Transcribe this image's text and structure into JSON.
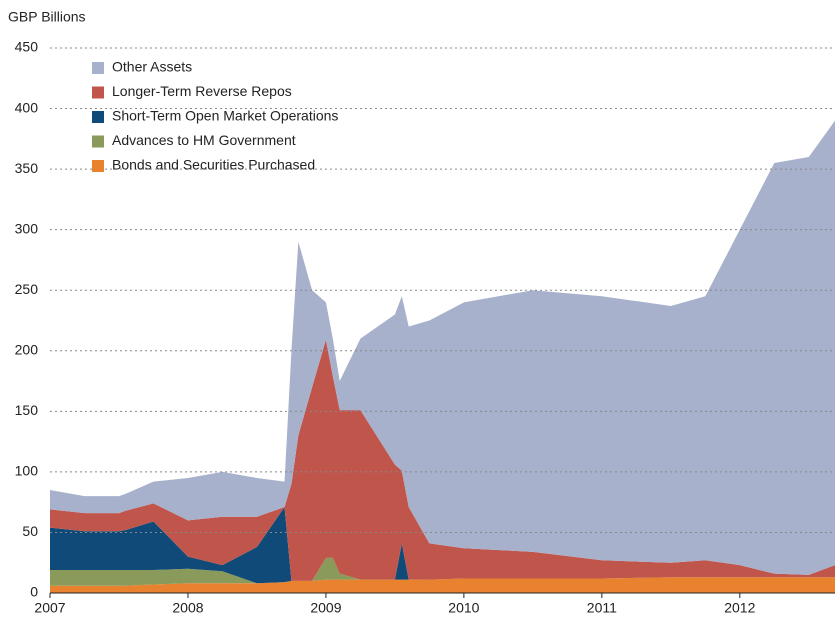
{
  "chart_data": {
    "type": "stacked-area",
    "y_axis_label": "GBP Billions",
    "x": [
      2007.0,
      2007.25,
      2007.5,
      2007.55,
      2007.75,
      2008.0,
      2008.25,
      2008.5,
      2008.7,
      2008.75,
      2008.8,
      2008.9,
      2009.0,
      2009.05,
      2009.1,
      2009.25,
      2009.5,
      2009.55,
      2009.6,
      2009.75,
      2010.0,
      2010.5,
      2011.0,
      2011.5,
      2011.75,
      2012.0,
      2012.25,
      2012.5,
      2012.69
    ],
    "series": [
      {
        "name": "Bonds and Securities Purchased",
        "color": "#e8822f",
        "values": [
          6,
          6,
          6,
          6,
          7,
          8,
          8,
          8,
          9,
          10,
          10,
          10,
          11,
          11,
          11,
          11,
          11,
          11,
          11,
          11,
          12,
          12,
          12,
          13,
          13,
          13,
          13,
          13,
          13
        ]
      },
      {
        "name": "Advances to HM Government",
        "color": "#8a9a5b",
        "values": [
          13,
          13,
          13,
          13,
          12,
          12,
          10,
          0,
          0,
          0,
          0,
          0,
          18,
          18,
          5,
          0,
          0,
          0,
          0,
          0,
          0,
          0,
          0,
          0,
          0,
          0,
          0,
          0,
          0
        ]
      },
      {
        "name": "Short-Term Open Market Operations",
        "color": "#0f4a78",
        "values": [
          35,
          32,
          32,
          33,
          40,
          10,
          5,
          30,
          62,
          0,
          0,
          0,
          0,
          0,
          0,
          0,
          0,
          30,
          0,
          0,
          0,
          0,
          0,
          0,
          0,
          0,
          0,
          0,
          0
        ]
      },
      {
        "name": "Longer-Term Reverse Repos",
        "color": "#c0564b",
        "values": [
          15,
          15,
          15,
          16,
          15,
          30,
          40,
          25,
          0,
          80,
          120,
          160,
          180,
          150,
          135,
          140,
          95,
          60,
          60,
          30,
          25,
          22,
          15,
          12,
          14,
          10,
          3,
          2,
          10
        ]
      },
      {
        "name": "Other Assets",
        "color": "#a8b1cb",
        "values": [
          16,
          14,
          14,
          14,
          18,
          35,
          37,
          32,
          21,
          110,
          160,
          80,
          31,
          31,
          24,
          59,
          124,
          144,
          149,
          184,
          203,
          216,
          218,
          212,
          218,
          277,
          339,
          345,
          367
        ]
      }
    ],
    "xlim": [
      2007,
      2012.69
    ],
    "xticks": [
      2007,
      2008,
      2009,
      2010,
      2011,
      2012
    ],
    "ylim": [
      0,
      450
    ],
    "yticks": [
      0,
      50,
      100,
      150,
      200,
      250,
      300,
      350,
      400,
      450
    ],
    "grid": true,
    "legend": "top-left"
  }
}
